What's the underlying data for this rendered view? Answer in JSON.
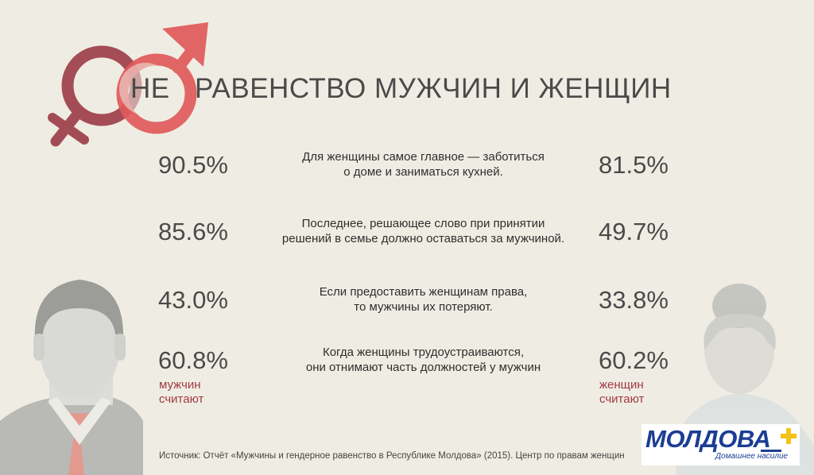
{
  "title": {
    "prefix": "НЕ",
    "rest": "РАВЕНСТВО МУЖЧИН И ЖЕНЩИН"
  },
  "rows": [
    {
      "men": "90.5%",
      "statement_line1": "Для женщины самое главное — заботиться",
      "statement_line2": "о доме и заниматься кухней.",
      "women": "81.5%"
    },
    {
      "men": "85.6%",
      "statement_line1": "Последнее, решающее слово при принятии",
      "statement_line2": "решений в семье должно оставаться за мужчиной.",
      "women": "49.7%"
    },
    {
      "men": "43.0%",
      "statement_line1": "Если предоставить женщинам права,",
      "statement_line2": "то мужчины их потеряют.",
      "women": "33.8%"
    },
    {
      "men": "60.8%",
      "statement_line1": "Когда женщины трудоустраиваются,",
      "statement_line2": "они отнимают часть должностей  у мужчин",
      "women": "60.2%"
    }
  ],
  "captions": {
    "men_line1": "мужчин",
    "men_line2": "считают",
    "women_line1": "женщин",
    "women_line2": "считают"
  },
  "source": "Источник: Отчёт «Мужчины и гендерное равенство в Республике Молдова» (2015). Центр по правам женщин",
  "logo": {
    "word": "МОЛДОВА",
    "sub": "Домашнее насилие"
  },
  "colors": {
    "background": "#efede3",
    "accent_red": "#e05a5a",
    "accent_dark_red": "#9c3b46",
    "caption_red": "#a23a45",
    "logo_blue": "#1b3d93",
    "logo_plus": "#f4c21b"
  },
  "icons": [
    "male-symbol-icon",
    "female-symbol-icon",
    "man-avatar-icon",
    "woman-avatar-icon"
  ]
}
